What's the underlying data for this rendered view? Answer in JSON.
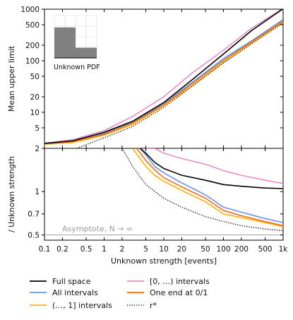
{
  "chart_data": {
    "type": "line",
    "xlabel": "Unknown strength [events]",
    "x_scale": "log",
    "xlim": [
      0.1,
      1000
    ],
    "x_ticks": [
      {
        "value": 0.1,
        "label": "0.1"
      },
      {
        "value": 0.2,
        "label": "0.2"
      },
      {
        "value": 0.5,
        "label": "0.5"
      },
      {
        "value": 1,
        "label": "1"
      },
      {
        "value": 2,
        "label": "2"
      },
      {
        "value": 5,
        "label": "5"
      },
      {
        "value": 10,
        "label": "10"
      },
      {
        "value": 20,
        "label": "20"
      },
      {
        "value": 50,
        "label": "50"
      },
      {
        "value": 100,
        "label": "100"
      },
      {
        "value": 200,
        "label": "200"
      },
      {
        "value": 500,
        "label": "500"
      },
      {
        "value": 1000,
        "label": "1k"
      }
    ],
    "legend_location": "below plot, two columns",
    "series_styles": [
      {
        "name": "Full space",
        "color": "#000000",
        "dash": "solid"
      },
      {
        "name": "All intervals",
        "color": "#6495ed",
        "dash": "solid"
      },
      {
        "name": "(…, 1] intervals",
        "color": "#ffb000",
        "dash": "solid"
      },
      {
        "name": "[0, …) intervals",
        "color": "#e88cc8",
        "dash": "solid"
      },
      {
        "name": "One end at 0/1",
        "color": "#f26c1a",
        "dash": "solid"
      },
      {
        "name": "r*",
        "color": "#000000",
        "dash": "dotted"
      }
    ],
    "panels": [
      {
        "id": "top",
        "ylabel": "Mean upper limit",
        "y_scale": "log",
        "ylim": [
          2,
          1000
        ],
        "y_ticks": [
          {
            "value": 2,
            "label": "2"
          },
          {
            "value": 5,
            "label": "5"
          },
          {
            "value": 10,
            "label": "10"
          },
          {
            "value": 20,
            "label": "20"
          },
          {
            "value": 50,
            "label": "50"
          },
          {
            "value": 100,
            "label": "100"
          },
          {
            "value": 200,
            "label": "200"
          },
          {
            "value": 500,
            "label": "500"
          },
          {
            "value": 1000,
            "label": "1000"
          }
        ],
        "inset": {
          "label": "Unknown PDF",
          "bars": [
            {
              "x_from": 0,
              "x_to": 0.5,
              "height": 0.72
            },
            {
              "x_from": 0.5,
              "x_to": 1,
              "height": 0.24
            }
          ],
          "bar_color": "#808080"
        },
        "series": [
          {
            "name": "Full space",
            "x": [
              0.1,
              0.3,
              1,
              3,
              10,
              30,
              100,
              300,
              1000
            ],
            "y": [
              2.5,
              2.8,
              4.1,
              6.7,
              15.5,
              43,
              135,
              390,
              1020
            ]
          },
          {
            "name": "All intervals",
            "x": [
              0.1,
              0.3,
              1,
              3,
              10,
              30,
              100,
              300,
              1000
            ],
            "y": [
              2.45,
              2.75,
              3.9,
              6.5,
              15,
              38,
              110,
              245,
              630
            ]
          },
          {
            "name": "(…, 1] intervals",
            "x": [
              0.1,
              0.3,
              1,
              3,
              10,
              30,
              100,
              300,
              1000
            ],
            "y": [
              2.4,
              2.6,
              3.6,
              5.8,
              13.5,
              33,
              95,
              225,
              560
            ]
          },
          {
            "name": "[0, …) intervals",
            "x": [
              0.1,
              0.3,
              1,
              3,
              10,
              30,
              100,
              300,
              1000
            ],
            "y": [
              2.5,
              2.95,
              4.4,
              8.3,
              20,
              58,
              160,
              430,
              1040
            ]
          },
          {
            "name": "One end at 0/1",
            "x": [
              0.1,
              0.3,
              1,
              3,
              10,
              30,
              100,
              300,
              1000
            ],
            "y": [
              2.45,
              2.7,
              3.75,
              6.2,
              14,
              36,
              102,
              235,
              590
            ]
          },
          {
            "name": "r*",
            "x": [
              0.35,
              1,
              3,
              10,
              30,
              100,
              300,
              1000
            ],
            "y": [
              2,
              3.2,
              5.3,
              12.5,
              32,
              90,
              215,
              540
            ]
          }
        ]
      },
      {
        "id": "bottom",
        "ylabel": "/ Unknown strength",
        "y_scale": "log",
        "ylim": [
          0.46,
          2
        ],
        "y_ticks": [
          {
            "value": 0.5,
            "label": "0.5"
          },
          {
            "value": 0.7,
            "label": "0.7"
          },
          {
            "value": 1,
            "label": "1"
          }
        ],
        "annotation": {
          "text": "Asymptote, N → ∞",
          "y": 0.5
        },
        "reference_line": {
          "y": 0.5,
          "color": "#a0a0a0"
        },
        "series": [
          {
            "name": "Full space",
            "x": [
              4,
              5,
              7,
              10,
              20,
              50,
              100,
              200,
              500,
              1000
            ],
            "y": [
              2,
              1.85,
              1.6,
              1.45,
              1.3,
              1.2,
              1.12,
              1.09,
              1.06,
              1.05
            ]
          },
          {
            "name": "All intervals",
            "x": [
              4,
              5,
              7,
              10,
              20,
              50,
              100,
              200,
              500,
              1000
            ],
            "y": [
              2,
              1.8,
              1.5,
              1.35,
              1.15,
              0.95,
              0.78,
              0.72,
              0.65,
              0.61
            ]
          },
          {
            "name": "(…, 1] intervals",
            "x": [
              3,
              5,
              7,
              10,
              20,
              50,
              100,
              200,
              500,
              1000
            ],
            "y": [
              2,
              1.5,
              1.3,
              1.18,
              1.02,
              0.85,
              0.7,
              0.66,
              0.61,
              0.57
            ]
          },
          {
            "name": "[0, …) intervals",
            "x": [
              5,
              7,
              10,
              20,
              50,
              100,
              200,
              500,
              1000
            ],
            "y": [
              2,
              2,
              1.85,
              1.7,
              1.55,
              1.4,
              1.3,
              1.2,
              1.14
            ]
          },
          {
            "name": "One end at 0/1",
            "x": [
              3.5,
              5,
              7,
              10,
              20,
              50,
              100,
              200,
              500,
              1000
            ],
            "y": [
              2,
              1.65,
              1.42,
              1.25,
              1.08,
              0.9,
              0.74,
              0.68,
              0.62,
              0.58
            ]
          },
          {
            "name": "r*",
            "x": [
              2,
              3,
              5,
              10,
              20,
              50,
              100,
              200,
              500,
              1000
            ],
            "y": [
              2,
              1.5,
              1.12,
              0.9,
              0.78,
              0.67,
              0.62,
              0.58,
              0.55,
              0.535
            ]
          }
        ]
      }
    ]
  }
}
